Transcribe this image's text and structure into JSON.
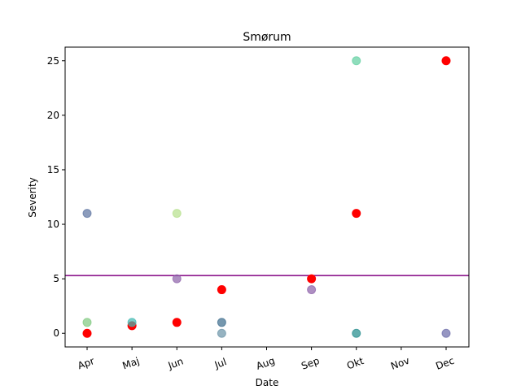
{
  "chart_data": {
    "type": "scatter",
    "title": "Smørum",
    "xlabel": "Date",
    "ylabel": "Severity",
    "categories": [
      "Apr",
      "Maj",
      "Jun",
      "Jul",
      "Aug",
      "Sep",
      "Okt",
      "Nov",
      "Dec"
    ],
    "ylim": [
      -1.25,
      26.25
    ],
    "yticks": [
      "0",
      "5",
      "10",
      "15",
      "20",
      "25"
    ],
    "grid": false,
    "reference_line": {
      "value": 5.3,
      "color": "#800080"
    },
    "series": [
      {
        "color": "#ff0000",
        "opacity": 1.0,
        "points": [
          {
            "x": "Apr",
            "y": 0
          },
          {
            "x": "Maj",
            "y": 0.7
          },
          {
            "x": "Jun",
            "y": 1
          },
          {
            "x": "Jul",
            "y": 4
          },
          {
            "x": "Sep",
            "y": 5
          },
          {
            "x": "Okt",
            "y": 11
          },
          {
            "x": "Dec",
            "y": 25
          }
        ]
      },
      {
        "color": "#7fc97f",
        "opacity": 0.7,
        "points": [
          {
            "x": "Apr",
            "y": 1
          }
        ]
      },
      {
        "color": "#5b72a0",
        "opacity": 0.7,
        "points": [
          {
            "x": "Apr",
            "y": 11
          }
        ]
      },
      {
        "color": "#3fb8b0",
        "opacity": 0.7,
        "points": [
          {
            "x": "Maj",
            "y": 1
          }
        ]
      },
      {
        "color": "#b5e08a",
        "opacity": 0.7,
        "points": [
          {
            "x": "Jun",
            "y": 11
          }
        ]
      },
      {
        "color": "#8b5fa8",
        "opacity": 0.7,
        "points": [
          {
            "x": "Jun",
            "y": 5
          },
          {
            "x": "Sep",
            "y": 4
          }
        ]
      },
      {
        "color": "#3a6b8c",
        "opacity": 0.7,
        "points": [
          {
            "x": "Jul",
            "y": 1
          }
        ]
      },
      {
        "color": "#6a93a6",
        "opacity": 0.7,
        "points": [
          {
            "x": "Jul",
            "y": 0
          }
        ]
      },
      {
        "color": "#5fcfa0",
        "opacity": 0.7,
        "points": [
          {
            "x": "Okt",
            "y": 25
          }
        ]
      },
      {
        "color": "#1f8a8a",
        "opacity": 0.7,
        "points": [
          {
            "x": "Okt",
            "y": 0
          }
        ]
      },
      {
        "color": "#6a6aa8",
        "opacity": 0.7,
        "points": [
          {
            "x": "Dec",
            "y": 0
          }
        ]
      }
    ]
  }
}
